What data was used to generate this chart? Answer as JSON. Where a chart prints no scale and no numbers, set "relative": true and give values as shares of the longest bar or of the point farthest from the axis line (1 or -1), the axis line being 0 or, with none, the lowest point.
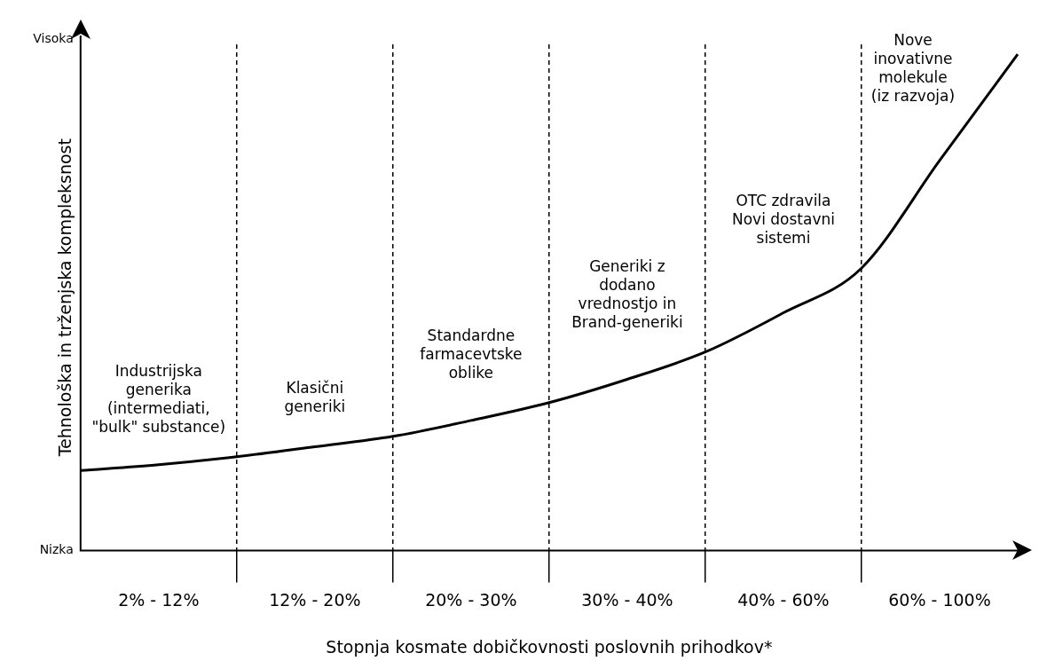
{
  "chart_data": {
    "type": "line",
    "relative": true,
    "xlabel": "Stopnja kosmate dobičkovnosti poslovnih prihodkov*",
    "ylabel": "Tehnološka in trženjska kompleksnost",
    "categories": [
      null,
      "2% - 12%",
      null,
      "12% - 20%",
      null,
      "20% - 30%",
      null,
      "30% - 40%",
      null,
      "40% - 60%",
      null,
      "60% - 100%",
      null
    ],
    "series": [
      {
        "color": "#000000",
        "values": [
          0.161,
          0.173,
          0.189,
          0.209,
          0.23,
          0.262,
          0.298,
          0.345,
          0.4,
          0.479,
          0.569,
          0.786,
          1.0
        ]
      }
    ],
    "annotations": [
      "Industrijska\ngenerika\n(intermediati,\n\"bulk\" substance)",
      "Klasični\ngeneriki",
      "Standardne\nfarmacevtske\noblike",
      "Generiki z\ndodano\nvrednostjo in\nBrand-generiki",
      "OTC zdravila\nNovi dostavni\nsistemi",
      "Nove\ninovativne\nmolekule\n(iz razvoja)",
      "Nizka",
      "Visoka"
    ],
    "grid": "x",
    "legend": false,
    "marker": "none",
    "line_style": "solid"
  }
}
